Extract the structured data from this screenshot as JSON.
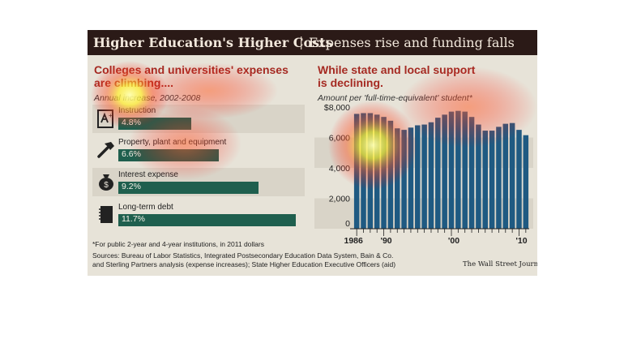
{
  "title": {
    "main": "Higher Education's Higher Costs",
    "separator": "|",
    "sub": "Expenses rise and funding falls"
  },
  "left_panel": {
    "heading_line1": "Colleges and universities' expenses",
    "heading_line2": "are climbing....",
    "subheading": "Annual increase, 2002-2008",
    "items": [
      {
        "label": "Instruction",
        "value": "4.8%",
        "icon": "book-icon"
      },
      {
        "label": "Property, plant and equipment",
        "value": "6.6%",
        "icon": "hammer-icon"
      },
      {
        "label": "Interest expense",
        "value": "9.2%",
        "icon": "money-bag-icon"
      },
      {
        "label": "Long-term debt",
        "value": "11.7%",
        "icon": "notebook-icon"
      }
    ]
  },
  "right_panel": {
    "heading_line1": "While state and local support",
    "heading_line2": "is declining.",
    "subheading": "Amount per 'full-time-equivalent' student*"
  },
  "footnotes": {
    "note": "*For public 2-year and 4-year institutions, in 2011 dollars",
    "sources_line1": "Sources: Bureau of Labor Statistics, Integrated Postsecondary Education Data System, Bain & Co.",
    "sources_line2": "and Sterling Partners analysis (expense increases); State Higher Education Executive Officers (aid)",
    "credit": "The Wall Street Journal"
  },
  "chart_data": [
    {
      "type": "bar",
      "title": "Colleges and universities' expenses are climbing....",
      "subtitle": "Annual increase, 2002-2008",
      "categories": [
        "Instruction",
        "Property, plant and equipment",
        "Interest expense",
        "Long-term debt"
      ],
      "values": [
        4.8,
        6.6,
        9.2,
        11.7
      ],
      "value_labels": [
        "4.8%",
        "6.6%",
        "9.2%",
        "11.7%"
      ],
      "orientation": "horizontal",
      "xlim": [
        0,
        12
      ],
      "color": "#1f5f4e"
    },
    {
      "type": "bar",
      "title": "While state and local support is declining.",
      "subtitle": "Amount per 'full-time-equivalent' student*",
      "x": [
        1986,
        1987,
        1988,
        1989,
        1990,
        1991,
        1992,
        1993,
        1994,
        1995,
        1996,
        1997,
        1998,
        1999,
        2000,
        2001,
        2002,
        2003,
        2004,
        2005,
        2006,
        2007,
        2008,
        2009,
        2010,
        2011
      ],
      "values": [
        7550,
        7600,
        7600,
        7500,
        7350,
        7100,
        6600,
        6500,
        6650,
        6800,
        6850,
        7000,
        7300,
        7500,
        7700,
        7750,
        7700,
        7350,
        6850,
        6450,
        6450,
        6700,
        6900,
        6950,
        6500,
        6150
      ],
      "ylim": [
        0,
        8000
      ],
      "yticks": [
        0,
        2000,
        4000,
        6000,
        8000
      ],
      "ytick_labels": [
        "0",
        "2,000",
        "4,000",
        "6,000",
        "$8,000"
      ],
      "xtick_labels": [
        {
          "x": 1986,
          "label": "1986"
        },
        {
          "x": 1990,
          "label": "'90"
        },
        {
          "x": 2000,
          "label": "'00"
        },
        {
          "x": 2010,
          "label": "'10"
        }
      ],
      "color": "#1f5a82"
    }
  ]
}
